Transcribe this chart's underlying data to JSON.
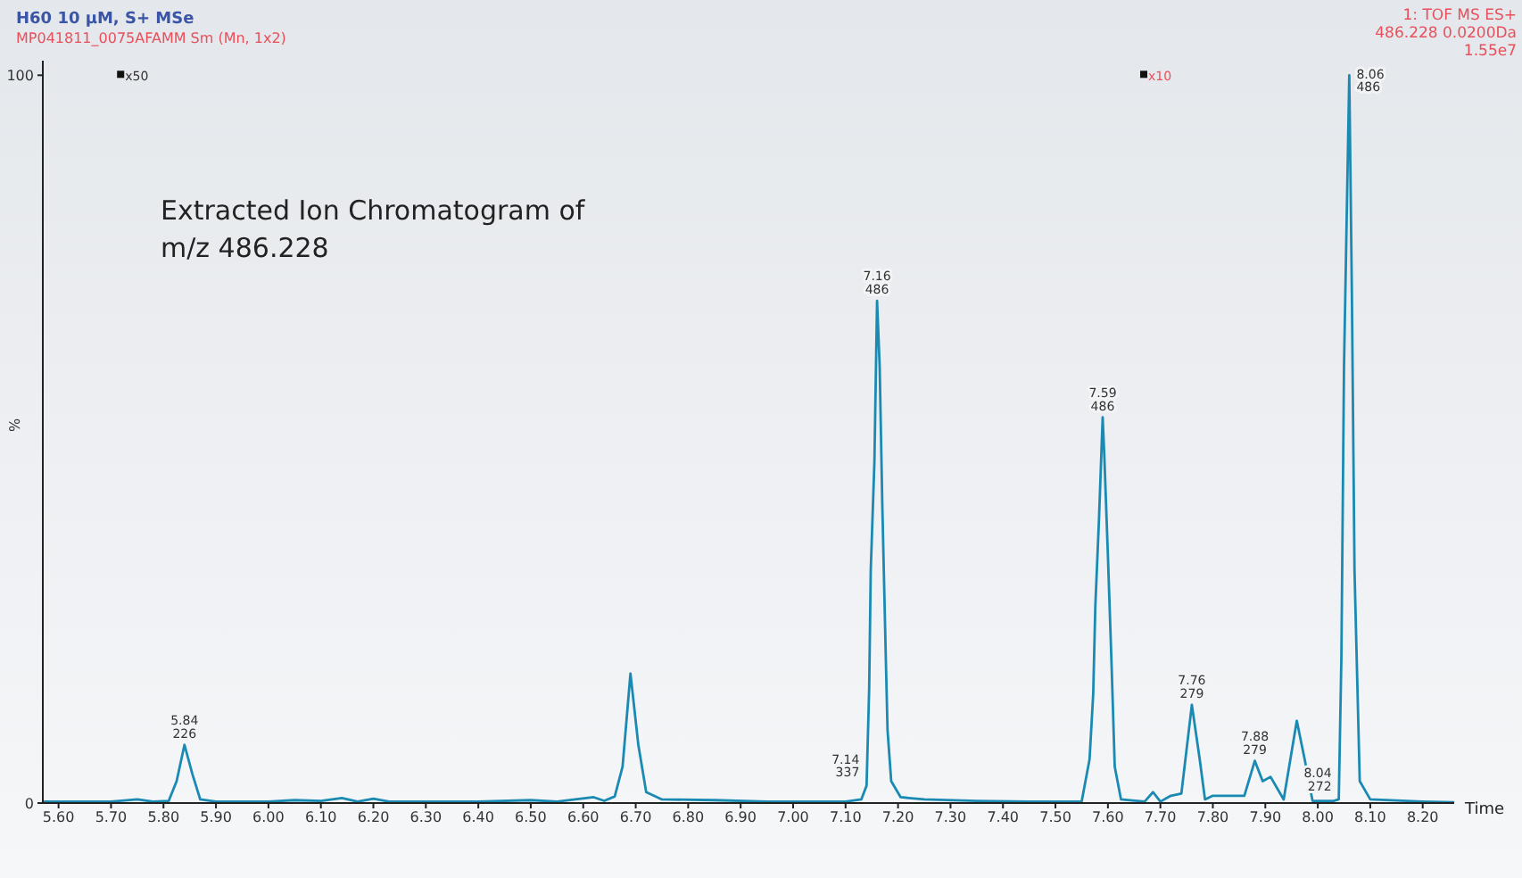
{
  "chart_data": {
    "type": "line",
    "title": "H60 10 µM, S+ MSe",
    "subtitle": "MP041811_0075AFAMM Sm (Mn, 1x2)",
    "xlabel": "Time",
    "ylabel": "%",
    "color": "#1b8ab3",
    "x": [
      5.57,
      5.7,
      5.75,
      5.78,
      5.81,
      5.825,
      5.84,
      5.855,
      5.87,
      5.9,
      6.0,
      6.05,
      6.1,
      6.14,
      6.17,
      6.2,
      6.23,
      6.3,
      6.4,
      6.5,
      6.55,
      6.62,
      6.64,
      6.66,
      6.675,
      6.69,
      6.705,
      6.72,
      6.75,
      6.85,
      6.95,
      7.05,
      7.1,
      7.13,
      7.14,
      7.145,
      7.148,
      7.155,
      7.16,
      7.165,
      7.17,
      7.177,
      7.18,
      7.187,
      7.205,
      7.25,
      7.35,
      7.45,
      7.55,
      7.565,
      7.572,
      7.576,
      7.583,
      7.59,
      7.593,
      7.6,
      7.607,
      7.613,
      7.625,
      7.67,
      7.686,
      7.7,
      7.72,
      7.74,
      7.76,
      7.775,
      7.785,
      7.8,
      7.86,
      7.88,
      7.895,
      7.91,
      7.935,
      7.96,
      7.975,
      7.99,
      8.03,
      8.04,
      8.045,
      8.05,
      8.06,
      8.065,
      8.07,
      8.08,
      8.1,
      8.2,
      8.26
    ],
    "values": [
      0.2,
      0.2,
      0.5,
      0.2,
      0.3,
      3,
      8,
      4,
      0.5,
      0.2,
      0.2,
      0.4,
      0.3,
      0.7,
      0.2,
      0.6,
      0.2,
      0.2,
      0.2,
      0.4,
      0.2,
      0.8,
      0.3,
      0.9,
      5,
      17.8,
      8,
      1.5,
      0.5,
      0.4,
      0.2,
      0.2,
      0.2,
      0.5,
      2.4,
      15.8,
      32,
      47,
      69,
      60,
      41,
      19,
      10,
      3,
      0.8,
      0.5,
      0.3,
      0.2,
      0.2,
      6,
      15,
      27,
      39,
      53,
      48,
      34,
      19,
      5,
      0.5,
      0.2,
      1.5,
      0.2,
      1,
      1.3,
      13.5,
      6,
      0.5,
      1,
      1,
      5.8,
      3,
      3.6,
      0.5,
      11.3,
      6,
      0.3,
      0.3,
      0.5,
      20,
      60,
      100,
      70,
      32,
      3,
      0.5,
      0.2,
      0.1
    ],
    "xlim": [
      5.57,
      8.26
    ],
    "xticks": [
      {
        "value": 5.6,
        "label": "5.60"
      },
      {
        "value": 5.7,
        "label": "5.70"
      },
      {
        "value": 5.8,
        "label": "5.80"
      },
      {
        "value": 5.9,
        "label": "5.90"
      },
      {
        "value": 6.0,
        "label": "6.00"
      },
      {
        "value": 6.1,
        "label": "6.10"
      },
      {
        "value": 6.2,
        "label": "6.20"
      },
      {
        "value": 6.3,
        "label": "6.30"
      },
      {
        "value": 6.4,
        "label": "6.40"
      },
      {
        "value": 6.5,
        "label": "6.50"
      },
      {
        "value": 6.6,
        "label": "6.60"
      },
      {
        "value": 6.7,
        "label": "6.70"
      },
      {
        "value": 6.8,
        "label": "6.80"
      },
      {
        "value": 6.9,
        "label": "6.90"
      },
      {
        "value": 7.0,
        "label": "7.00"
      },
      {
        "value": 7.1,
        "label": "7.10"
      },
      {
        "value": 7.2,
        "label": "7.20"
      },
      {
        "value": 7.3,
        "label": "7.30"
      },
      {
        "value": 7.4,
        "label": "7.40"
      },
      {
        "value": 7.5,
        "label": "7.50"
      },
      {
        "value": 7.6,
        "label": "7.60"
      },
      {
        "value": 7.7,
        "label": "7.70"
      },
      {
        "value": 7.8,
        "label": "7.80"
      },
      {
        "value": 7.9,
        "label": "7.90"
      },
      {
        "value": 8.0,
        "label": "8.00"
      },
      {
        "value": 8.1,
        "label": "8.10"
      },
      {
        "value": 8.2,
        "label": "8.20"
      }
    ],
    "ylim": [
      0,
      102
    ],
    "yticks": [
      0,
      100
    ],
    "annotations": [
      "1: TOF MS ES+\n486.228 0.0200Da\n1.55e7",
      "Extracted Ion Chromatogram of\nm/z 486.228",
      {
        "text": "x50",
        "x": 5.72,
        "y": 100
      },
      {
        "text": "x10",
        "x": 7.67,
        "y": 100
      },
      {
        "text": "5.84\n226",
        "x": 5.84,
        "y": 8
      },
      {
        "text": "7.14\n337",
        "x": 7.14,
        "y": 2.4
      },
      {
        "text": "7.16\n486",
        "x": 7.16,
        "y": 69
      },
      {
        "text": "7.59\n486",
        "x": 7.59,
        "y": 53
      },
      {
        "text": "7.76\n279",
        "x": 7.76,
        "y": 13.5
      },
      {
        "text": "7.88\n279",
        "x": 7.88,
        "y": 5.8
      },
      {
        "text": "8.04\n272",
        "x": 8.04,
        "y": 0.5
      },
      {
        "text": "8.06\n486",
        "x": 8.06,
        "y": 100
      }
    ]
  }
}
